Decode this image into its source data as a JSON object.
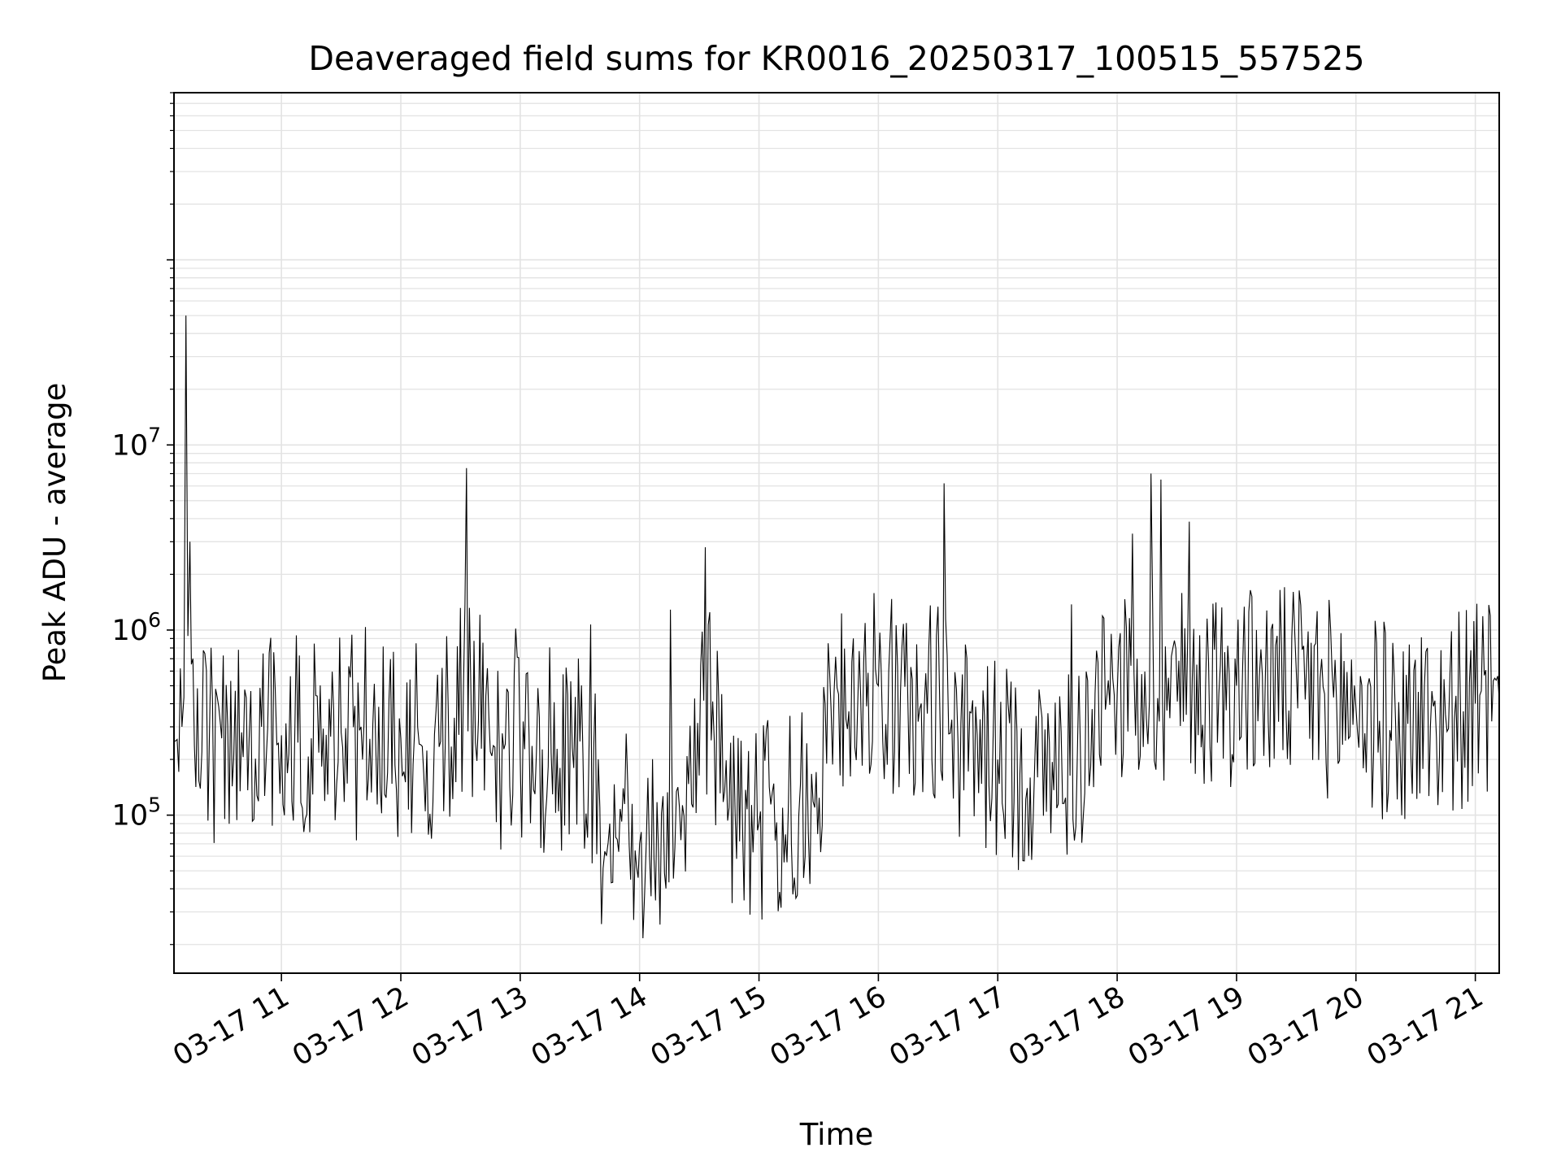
{
  "chart_data": {
    "type": "line",
    "title": "Deaveraged field sums for KR0016_20250317_100515_557525",
    "xlabel": "Time",
    "ylabel": "Peak ADU - average",
    "yscale": "log",
    "xlim": [
      "2025-03-17 10:06",
      "2025-03-17 21:12"
    ],
    "ylim": [
      14000,
      800000000
    ],
    "grid": true,
    "line_color": "#000000",
    "x_ticks": [
      {
        "t": "2025-03-17 11:00",
        "label": "03-17 11"
      },
      {
        "t": "2025-03-17 12:00",
        "label": "03-17 12"
      },
      {
        "t": "2025-03-17 13:00",
        "label": "03-17 13"
      },
      {
        "t": "2025-03-17 14:00",
        "label": "03-17 14"
      },
      {
        "t": "2025-03-17 15:00",
        "label": "03-17 15"
      },
      {
        "t": "2025-03-17 16:00",
        "label": "03-17 16"
      },
      {
        "t": "2025-03-17 17:00",
        "label": "03-17 17"
      },
      {
        "t": "2025-03-17 18:00",
        "label": "03-17 18"
      },
      {
        "t": "2025-03-17 19:00",
        "label": "03-17 19"
      },
      {
        "t": "2025-03-17 20:00",
        "label": "03-17 20"
      },
      {
        "t": "2025-03-17 21:00",
        "label": "03-17 21"
      }
    ],
    "y_ticks": [
      {
        "v": 100000,
        "base": "10",
        "exp": "5"
      },
      {
        "v": 1000000,
        "base": "10",
        "exp": "6"
      },
      {
        "v": 10000000,
        "base": "10",
        "exp": "7"
      }
    ],
    "series": [
      {
        "t": [
          "2025-03-17 10:06",
          "2025-03-17 10:10",
          "2025-03-17 10:12",
          "2025-03-17 10:14",
          "2025-03-17 10:20",
          "2025-03-17 10:30",
          "2025-03-17 10:36",
          "2025-03-17 10:40",
          "2025-03-17 10:50",
          "2025-03-17 11:00",
          "2025-03-17 11:15",
          "2025-03-17 11:30",
          "2025-03-17 11:40",
          "2025-03-17 12:00",
          "2025-03-17 12:10",
          "2025-03-17 12:20",
          "2025-03-17 12:33",
          "2025-03-17 12:45",
          "2025-03-17 13:00",
          "2025-03-17 13:20",
          "2025-03-17 13:30",
          "2025-03-17 13:40",
          "2025-03-17 13:45",
          "2025-03-17 14:00",
          "2025-03-17 14:05",
          "2025-03-17 14:20",
          "2025-03-17 14:33",
          "2025-03-17 14:45",
          "2025-03-17 15:00",
          "2025-03-17 15:20",
          "2025-03-17 15:28",
          "2025-03-17 15:40",
          "2025-03-17 16:00",
          "2025-03-17 16:20",
          "2025-03-17 16:33",
          "2025-03-17 16:40",
          "2025-03-17 17:00",
          "2025-03-17 17:20",
          "2025-03-17 17:40",
          "2025-03-17 18:00",
          "2025-03-17 18:10",
          "2025-03-17 18:17",
          "2025-03-17 18:22",
          "2025-03-17 18:40",
          "2025-03-17 19:00",
          "2025-03-17 19:10",
          "2025-03-17 19:30",
          "2025-03-17 20:00",
          "2025-03-17 20:20",
          "2025-03-17 20:45",
          "2025-03-17 21:00",
          "2025-03-17 21:12"
        ],
        "values": [
          250000,
          300000,
          50000000,
          3000000,
          220000,
          260000,
          200000,
          280000,
          300000,
          270000,
          260000,
          280000,
          300000,
          260000,
          240000,
          250000,
          7500000,
          220000,
          200000,
          180000,
          250000,
          110000,
          90000,
          70000,
          60000,
          110000,
          2800000,
          110000,
          90000,
          100000,
          110000,
          450000,
          500000,
          320000,
          6200000,
          250000,
          200000,
          160000,
          210000,
          450000,
          700000,
          7000000,
          6500000,
          650000,
          500000,
          1000000,
          600000,
          380000,
          300000,
          350000,
          400000,
          420000
        ]
      }
    ]
  }
}
